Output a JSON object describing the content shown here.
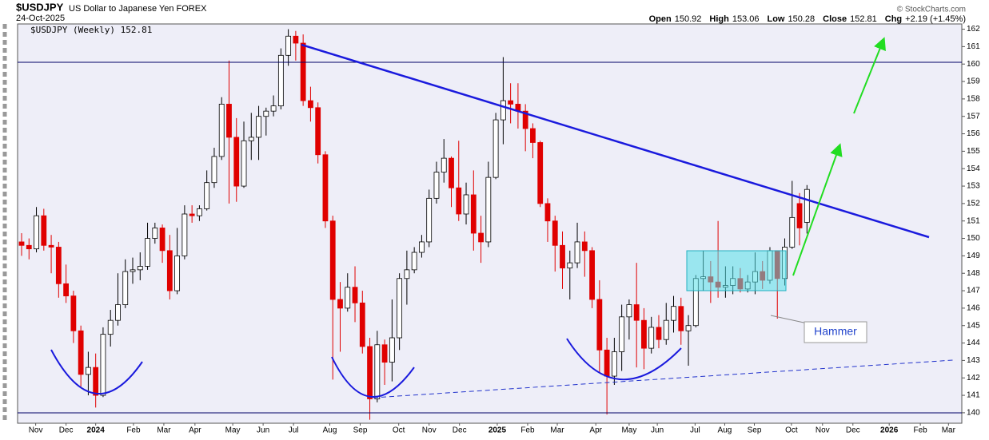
{
  "chart_data": {
    "type": "candlestick",
    "symbol": "$USDJPY",
    "description": "US Dollar to Japanese Yen FOREX",
    "date": "24-Oct-2025",
    "credit": "© StockCharts.com",
    "legend": "$USDJPY (Weekly) 152.81",
    "stats": [
      {
        "label": "Open",
        "value": 150.92
      },
      {
        "label": "High",
        "value": 153.06
      },
      {
        "label": "Low",
        "value": 150.28
      },
      {
        "label": "Close",
        "value": 152.81
      },
      {
        "label": "Chg",
        "value": "+2.19 (+1.45%)"
      }
    ],
    "annotations": [
      "Hammer"
    ],
    "open": [
      149.8,
      149.6,
      149.4,
      151.3,
      149.6,
      149.5,
      147.4,
      146.7,
      144.7,
      142.2,
      142.6,
      141.0,
      144.5,
      145.3,
      146.2,
      148.1,
      148.2,
      148.4,
      150.0,
      150.6,
      149.3,
      147.0,
      149.0,
      151.4,
      151.3,
      151.7,
      153.2,
      154.7,
      157.7,
      155.8,
      153.0,
      155.6,
      155.8,
      157.0,
      157.3,
      157.6,
      160.5,
      161.6,
      161.2,
      157.9,
      157.5,
      154.8,
      151.0,
      146.5,
      146.0,
      147.2,
      146.3,
      143.8,
      140.8,
      143.9,
      142.9,
      144.3,
      147.7,
      148.2,
      149.2,
      149.8,
      152.3,
      153.8,
      154.6,
      152.9,
      151.4,
      152.5,
      150.3,
      149.8,
      153.5,
      156.8,
      157.9,
      157.7,
      157.3,
      156.3,
      155.5,
      152.0,
      151.0,
      149.6,
      148.3,
      148.6,
      149.8,
      149.3,
      146.5,
      143.6,
      142.1,
      143.5,
      145.5,
      146.2,
      145.3,
      143.7,
      144.9,
      144.2,
      145.3,
      146.1,
      144.7,
      145.0,
      147.7,
      147.8,
      147.5,
      147.2,
      147.3,
      147.7,
      147.1,
      147.5,
      148.1,
      147.6,
      149.3,
      147.7,
      149.5,
      152.0,
      150.92
    ],
    "high": [
      150.3,
      150.0,
      151.8,
      151.7,
      150.2,
      149.8,
      148.5,
      147.0,
      145.0,
      143.5,
      143.4,
      144.9,
      145.9,
      148.0,
      148.8,
      148.9,
      149.2,
      150.9,
      150.9,
      150.8,
      150.2,
      150.6,
      151.9,
      151.9,
      151.9,
      153.9,
      155.2,
      158.1,
      160.2,
      156.9,
      156.7,
      157.2,
      157.6,
      157.5,
      158.2,
      160.9,
      162.0,
      161.9,
      161.7,
      158.7,
      157.8,
      155.0,
      151.3,
      147.5,
      148.0,
      148.4,
      147.0,
      144.3,
      144.7,
      144.2,
      146.5,
      148.0,
      149.3,
      149.5,
      150.2,
      152.8,
      154.4,
      155.7,
      154.7,
      155.6,
      153.2,
      153.9,
      151.3,
      154.4,
      157.2,
      160.4,
      158.9,
      158.9,
      157.7,
      156.6,
      155.6,
      152.3,
      151.3,
      150.4,
      149.3,
      150.9,
      150.4,
      149.5,
      147.6,
      144.3,
      144.3,
      146.2,
      146.5,
      148.6,
      146.0,
      145.5,
      145.6,
      146.3,
      146.7,
      146.6,
      145.6,
      147.9,
      149.3,
      148.7,
      151.0,
      148.4,
      148.4,
      148.3,
      147.9,
      149.2,
      148.7,
      149.5,
      149.3,
      150.0,
      153.3,
      152.6,
      153.06
    ],
    "low": [
      149.0,
      148.8,
      149.2,
      149.3,
      148.0,
      146.6,
      146.3,
      144.0,
      141.5,
      141.0,
      140.3,
      140.9,
      143.8,
      145.0,
      146.0,
      147.4,
      147.6,
      148.2,
      149.7,
      148.6,
      146.5,
      146.8,
      148.8,
      150.9,
      151.0,
      151.6,
      152.9,
      154.5,
      152.0,
      152.1,
      152.9,
      154.5,
      154.5,
      155.9,
      157.0,
      157.4,
      159.9,
      160.2,
      157.6,
      156.7,
      154.3,
      150.6,
      141.9,
      143.5,
      145.8,
      145.2,
      143.4,
      139.6,
      140.6,
      141.6,
      141.8,
      143.6,
      146.2,
      148.0,
      148.9,
      149.5,
      152.0,
      153.2,
      151.8,
      151.0,
      150.8,
      149.3,
      148.6,
      149.5,
      153.4,
      155.4,
      156.6,
      156.3,
      155.0,
      154.6,
      151.8,
      149.8,
      148.1,
      147.1,
      146.5,
      148.3,
      147.8,
      146.0,
      142.3,
      139.9,
      141.6,
      142.4,
      144.2,
      142.6,
      142.5,
      143.4,
      143.7,
      143.9,
      144.6,
      143.9,
      142.7,
      144.9,
      147.0,
      146.3,
      146.6,
      146.6,
      146.8,
      146.9,
      146.9,
      146.8,
      147.1,
      147.4,
      145.4,
      147.3,
      149.4,
      149.6,
      150.28
    ],
    "close": [
      149.6,
      149.4,
      151.3,
      149.6,
      149.5,
      147.4,
      146.7,
      144.7,
      142.2,
      142.6,
      141.0,
      144.5,
      145.3,
      146.2,
      148.1,
      148.2,
      148.4,
      150.0,
      150.6,
      149.3,
      147.0,
      149.0,
      151.4,
      151.3,
      151.7,
      153.2,
      154.7,
      157.7,
      155.8,
      153.0,
      155.6,
      155.8,
      157.0,
      157.3,
      157.6,
      160.5,
      161.6,
      161.2,
      157.9,
      157.5,
      154.8,
      151.0,
      146.5,
      146.0,
      147.2,
      146.3,
      143.8,
      140.8,
      143.9,
      142.9,
      144.3,
      147.7,
      148.2,
      149.2,
      149.8,
      152.3,
      153.8,
      154.6,
      152.9,
      151.4,
      152.5,
      150.3,
      149.8,
      153.5,
      156.8,
      157.9,
      157.7,
      157.3,
      156.3,
      155.5,
      152.0,
      151.0,
      149.6,
      148.3,
      148.6,
      149.8,
      149.3,
      146.5,
      143.6,
      142.1,
      143.5,
      145.5,
      146.2,
      145.3,
      143.7,
      144.9,
      144.2,
      145.3,
      146.1,
      144.7,
      145.0,
      147.7,
      147.8,
      147.5,
      147.2,
      147.3,
      147.7,
      147.1,
      147.5,
      148.1,
      147.6,
      149.3,
      147.7,
      149.5,
      151.2,
      150.6,
      152.81
    ],
    "up_color": "#ffffff",
    "down_color": "#e00000",
    "ylim": [
      139.4,
      162.3
    ],
    "yticks": [
      140,
      141,
      142,
      143,
      144,
      145,
      146,
      147,
      148,
      149,
      150,
      151,
      152,
      153,
      154,
      155,
      156,
      157,
      158,
      159,
      160,
      161,
      162
    ],
    "xlim": [
      -0.54,
      126.9
    ],
    "xticks": [
      {
        "value": 1.9,
        "label": "Nov"
      },
      {
        "value": 6.0,
        "label": "Dec"
      },
      {
        "value": 10.0,
        "label": "2024"
      },
      {
        "value": 15.1,
        "label": "Feb"
      },
      {
        "value": 19.2,
        "label": "Mar"
      },
      {
        "value": 23.4,
        "label": "Apr"
      },
      {
        "value": 28.5,
        "label": "May"
      },
      {
        "value": 32.6,
        "label": "Jun"
      },
      {
        "value": 36.7,
        "label": "Jul"
      },
      {
        "value": 41.6,
        "label": "Aug"
      },
      {
        "value": 45.7,
        "label": "Sep"
      },
      {
        "value": 50.9,
        "label": "Oct"
      },
      {
        "value": 55.0,
        "label": "Nov"
      },
      {
        "value": 59.1,
        "label": "Dec"
      },
      {
        "value": 64.2,
        "label": "2025"
      },
      {
        "value": 68.3,
        "label": "Feb"
      },
      {
        "value": 72.3,
        "label": "Mar"
      },
      {
        "value": 77.5,
        "label": "Apr"
      },
      {
        "value": 82.0,
        "label": "May"
      },
      {
        "value": 85.8,
        "label": "Jun"
      },
      {
        "value": 90.9,
        "label": "Jul"
      },
      {
        "value": 94.9,
        "label": "Aug"
      },
      {
        "value": 98.9,
        "label": "Sep"
      },
      {
        "value": 103.9,
        "label": "Oct"
      },
      {
        "value": 108.1,
        "label": "Nov"
      },
      {
        "value": 112.2,
        "label": "Dec"
      },
      {
        "value": 117.1,
        "label": "2026"
      },
      {
        "value": 121.3,
        "label": "Feb"
      },
      {
        "value": 125.1,
        "label": "Mar"
      }
    ]
  }
}
